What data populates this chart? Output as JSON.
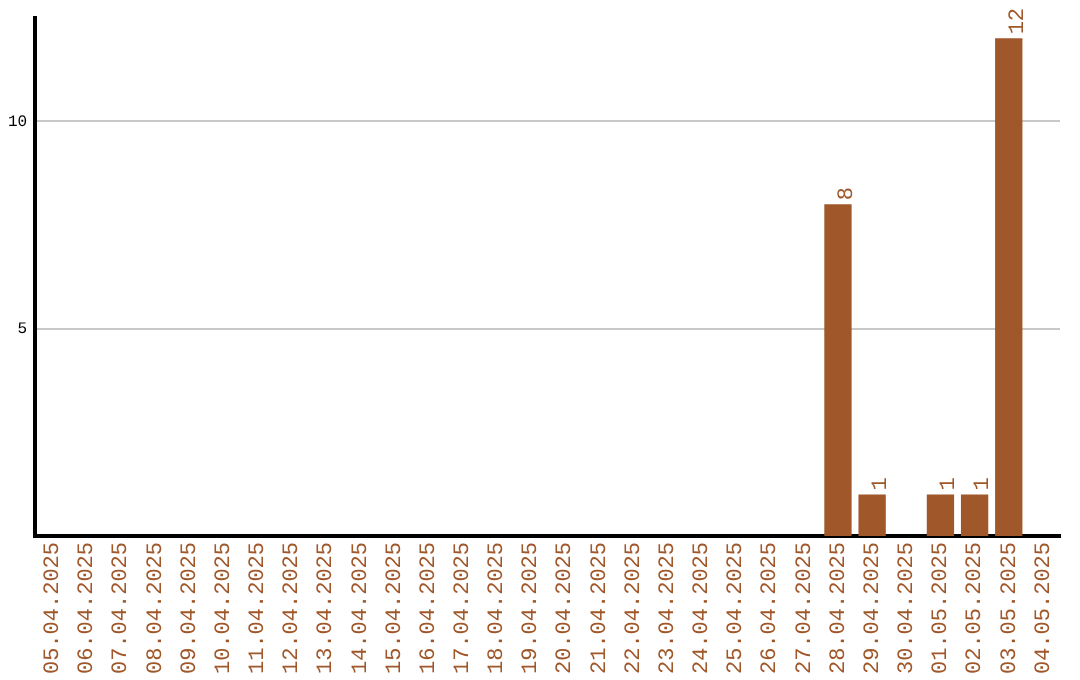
{
  "chart_data": {
    "type": "bar",
    "categories": [
      "05.04.2025",
      "06.04.2025",
      "07.04.2025",
      "08.04.2025",
      "09.04.2025",
      "10.04.2025",
      "11.04.2025",
      "12.04.2025",
      "13.04.2025",
      "14.04.2025",
      "15.04.2025",
      "16.04.2025",
      "17.04.2025",
      "18.04.2025",
      "19.04.2025",
      "20.04.2025",
      "21.04.2025",
      "22.04.2025",
      "23.04.2025",
      "24.04.2025",
      "25.04.2025",
      "26.04.2025",
      "27.04.2025",
      "28.04.2025",
      "29.04.2025",
      "30.04.2025",
      "01.05.2025",
      "02.05.2025",
      "03.05.2025",
      "04.05.2025"
    ],
    "values": [
      0,
      0,
      0,
      0,
      0,
      0,
      0,
      0,
      0,
      0,
      0,
      0,
      0,
      0,
      0,
      0,
      0,
      0,
      0,
      0,
      0,
      0,
      0,
      8,
      1,
      0,
      1,
      1,
      12,
      0
    ],
    "value_labels": [
      null,
      null,
      null,
      null,
      null,
      null,
      null,
      null,
      null,
      null,
      null,
      null,
      null,
      null,
      null,
      null,
      null,
      null,
      null,
      null,
      null,
      null,
      null,
      "8",
      "1",
      null,
      "1",
      "1",
      "12",
      null
    ],
    "color": "#a0572a",
    "ylim": [
      0,
      12.5
    ],
    "yticks": [
      5,
      10
    ],
    "grid": "y",
    "legend": false
  }
}
